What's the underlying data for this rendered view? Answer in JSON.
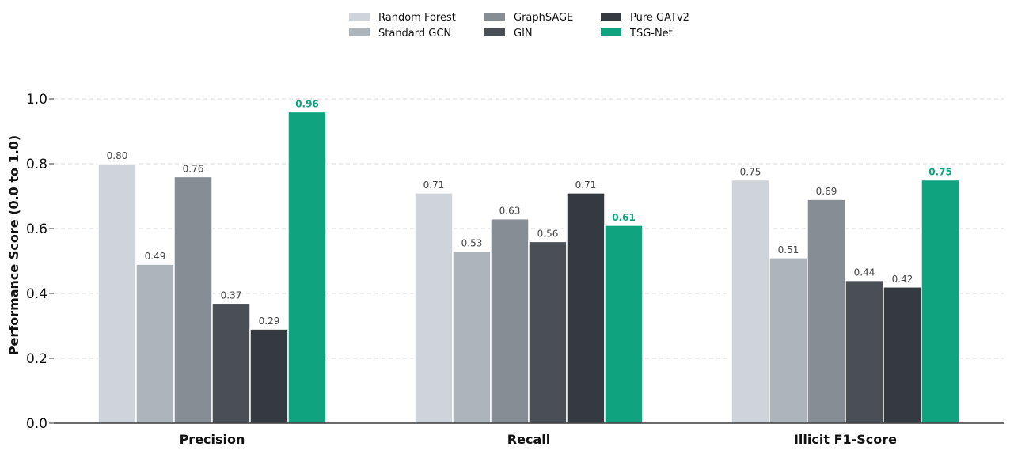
{
  "chart_data": {
    "type": "bar",
    "categories": [
      "Precision",
      "Recall",
      "Illicit F1-Score"
    ],
    "series": [
      {
        "name": "Random Forest",
        "color": "#cfd4da",
        "values": [
          0.8,
          0.71,
          0.75
        ],
        "labels": [
          "0.80",
          "0.71",
          "0.75"
        ]
      },
      {
        "name": "Standard GCN",
        "color": "#adb4ba",
        "values": [
          0.49,
          0.53,
          0.51
        ],
        "labels": [
          "0.49",
          "0.53",
          "0.51"
        ]
      },
      {
        "name": "GraphSAGE",
        "color": "#868d94",
        "values": [
          0.76,
          0.63,
          0.69
        ],
        "labels": [
          "0.76",
          "0.63",
          "0.69"
        ]
      },
      {
        "name": "GIN",
        "color": "#4a4f56",
        "values": [
          0.37,
          0.56,
          0.44
        ],
        "labels": [
          "0.37",
          "0.56",
          "0.44"
        ]
      },
      {
        "name": "Pure GATv2",
        "color": "#343a40",
        "values": [
          0.29,
          0.71,
          0.42
        ],
        "labels": [
          "0.29",
          "0.71",
          "0.42"
        ]
      },
      {
        "name": "TSG-Net",
        "color": "#10a37f",
        "values": [
          0.96,
          0.61,
          0.75
        ],
        "labels": [
          "0.96",
          "0.61",
          "0.75"
        ],
        "highlight": true
      }
    ],
    "title": "",
    "xlabel": "",
    "ylabel": "Performance Score (0.0 to 1.0)",
    "ylim": [
      0,
      1.0
    ],
    "yticks": [
      "0.0",
      "0.2",
      "0.4",
      "0.6",
      "0.8",
      "1.0"
    ],
    "grid": "y-dashed",
    "legend_position": "top-center"
  }
}
